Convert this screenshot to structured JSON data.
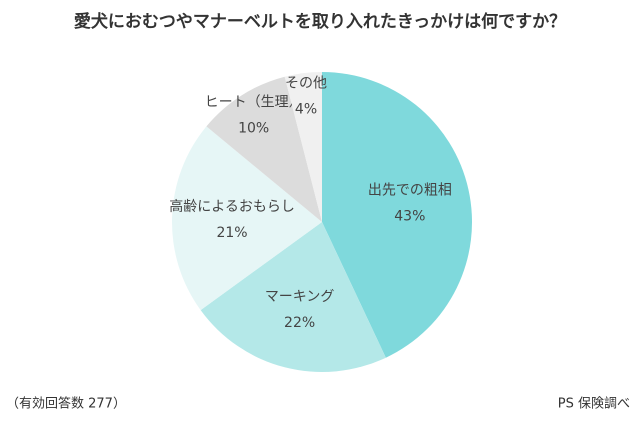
{
  "chart_data": {
    "type": "pie",
    "title": "愛犬におむつやマナーベルトを取り入れたきっかけは何ですか？",
    "categories": [
      "出先での粗相",
      "マーキング",
      "高齢によるおもらし",
      "ヒート（生理）",
      "その他"
    ],
    "values": [
      43,
      22,
      21,
      10,
      4
    ],
    "value_labels": [
      "43%",
      "22%",
      "21%",
      "10%",
      "4%"
    ],
    "colors": [
      "#7fd9dc",
      "#b4e8e8",
      "#e6f6f6",
      "#dcdcdc",
      "#f0f0f0"
    ],
    "note": "（有効回答数 277）",
    "source": "PS 保険調べ"
  }
}
